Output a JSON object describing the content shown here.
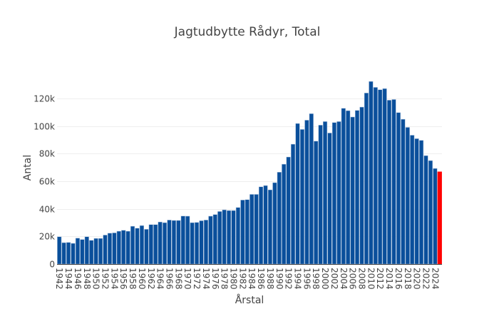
{
  "chart_data": {
    "type": "bar",
    "title": "Jagtudbytte Rådyr, Total",
    "xlabel": "Årstal",
    "ylabel": "Antal",
    "ylim": [
      0,
      139700
    ],
    "yticks": [
      0,
      20000,
      40000,
      60000,
      80000,
      100000,
      120000
    ],
    "ytick_labels": [
      "0",
      "20k",
      "40k",
      "60k",
      "80k",
      "100k",
      "120k"
    ],
    "grid": true,
    "categories": [
      1942,
      1943,
      1944,
      1945,
      1946,
      1947,
      1948,
      1949,
      1950,
      1951,
      1952,
      1953,
      1954,
      1955,
      1956,
      1957,
      1958,
      1959,
      1960,
      1961,
      1962,
      1963,
      1964,
      1965,
      1966,
      1967,
      1968,
      1969,
      1970,
      1971,
      1972,
      1973,
      1974,
      1975,
      1976,
      1977,
      1978,
      1979,
      1980,
      1981,
      1982,
      1983,
      1984,
      1985,
      1986,
      1987,
      1988,
      1989,
      1990,
      1991,
      1992,
      1993,
      1994,
      1995,
      1996,
      1997,
      1998,
      1999,
      2000,
      2001,
      2002,
      2003,
      2004,
      2005,
      2006,
      2007,
      2008,
      2009,
      2010,
      2011,
      2012,
      2013,
      2014,
      2015,
      2016,
      2017,
      2018,
      2019,
      2020,
      2021,
      2022,
      2023,
      2024,
      2025
    ],
    "values": [
      19800,
      15500,
      15700,
      15000,
      18800,
      17800,
      19800,
      17200,
      18600,
      18600,
      21000,
      22400,
      22600,
      23800,
      24500,
      23800,
      27400,
      26000,
      27900,
      25200,
      28600,
      28600,
      30500,
      30000,
      31900,
      31600,
      31600,
      34800,
      34700,
      30000,
      30200,
      31400,
      31900,
      34700,
      35900,
      38100,
      39300,
      38800,
      38800,
      41000,
      46400,
      46700,
      50500,
      50500,
      56000,
      56900,
      53800,
      59000,
      66600,
      72400,
      77600,
      86900,
      101900,
      97600,
      104300,
      109000,
      89100,
      100700,
      103300,
      95000,
      102600,
      103300,
      112900,
      111200,
      106600,
      111400,
      113800,
      124000,
      132400,
      128100,
      126400,
      127200,
      118800,
      119300,
      109800,
      105000,
      99100,
      93400,
      90900,
      89700,
      78600,
      75000,
      69300,
      66900
    ],
    "xtick_labels": [
      "1942",
      "1944",
      "1946",
      "1948",
      "1950",
      "1952",
      "1954",
      "1956",
      "1958",
      "1960",
      "1962",
      "1964",
      "1966",
      "1968",
      "1970",
      "1972",
      "1974",
      "1976",
      "1978",
      "1980",
      "1982",
      "1984",
      "1986",
      "1988",
      "1990",
      "1992",
      "1994",
      "1996",
      "1998",
      "2000",
      "2002",
      "2004",
      "2006",
      "2008",
      "2010",
      "2012",
      "2014",
      "2016",
      "2018",
      "2020",
      "2022",
      "2024"
    ],
    "colors": {
      "bar": "#0a4f9b",
      "bar_border": "#a9c1dd",
      "highlight": "#ff0000",
      "grid": "#eeeeee",
      "axis": "#444444"
    },
    "highlight_category": 2025
  }
}
